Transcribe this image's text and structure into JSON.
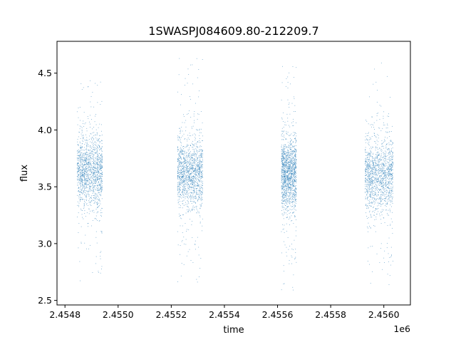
{
  "chart_data": {
    "type": "scatter",
    "title": "1SWASPJ084609.80-212209.7",
    "xlabel": "time",
    "ylabel": "flux",
    "x_offset_label": "1e6",
    "xlim": [
      2454770,
      2456100
    ],
    "ylim": [
      2.46,
      4.78
    ],
    "x_ticks": [
      2454800,
      2455000,
      2455200,
      2455400,
      2455600,
      2455800,
      2456000
    ],
    "x_tick_labels": [
      "2.4548",
      "2.4550",
      "2.4552",
      "2.4554",
      "2.4556",
      "2.4558",
      "2.4560"
    ],
    "y_ticks": [
      2.5,
      3.0,
      3.5,
      4.0,
      4.5
    ],
    "y_tick_labels": [
      "2.5",
      "3.0",
      "3.5",
      "4.0",
      "4.5"
    ],
    "grid": false,
    "point_color": "#1f77b4",
    "seasons": [
      {
        "x_start": 2454844,
        "x_end": 2454940,
        "median_flux": 3.63,
        "min_flux": 2.66,
        "max_flux": 4.53
      },
      {
        "x_start": 2455222,
        "x_end": 2455318,
        "median_flux": 3.62,
        "min_flux": 2.66,
        "max_flux": 4.66
      },
      {
        "x_start": 2455613,
        "x_end": 2455670,
        "median_flux": 3.62,
        "min_flux": 2.59,
        "max_flux": 4.59
      },
      {
        "x_start": 2455928,
        "x_end": 2456034,
        "median_flux": 3.6,
        "min_flux": 2.59,
        "max_flux": 4.68
      }
    ]
  }
}
